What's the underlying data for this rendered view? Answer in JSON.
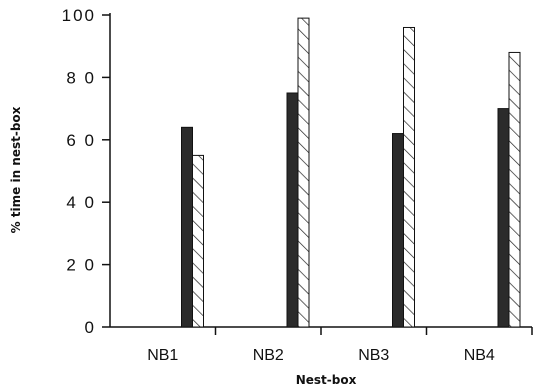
{
  "chart_data": {
    "type": "bar",
    "title": "",
    "xlabel": "Nest-box",
    "ylabel": "% time in nest-box",
    "categories": [
      "NB1",
      "NB2",
      "NB3",
      "NB4"
    ],
    "ylim": [
      0,
      100
    ],
    "yticks": [
      0,
      20,
      40,
      60,
      80,
      100
    ],
    "ytick_labels": [
      "0",
      "2 0",
      "4 0",
      "6 0",
      "8 0",
      "100"
    ],
    "grid": false,
    "legend": "none",
    "series": [
      {
        "values": [
          64,
          75,
          62,
          70
        ],
        "fill": "solid-dark",
        "color": "#2b2b2b"
      },
      {
        "values": [
          55,
          99,
          96,
          88
        ],
        "fill": "diagonal-hatch",
        "color": "#ffffff"
      }
    ]
  }
}
